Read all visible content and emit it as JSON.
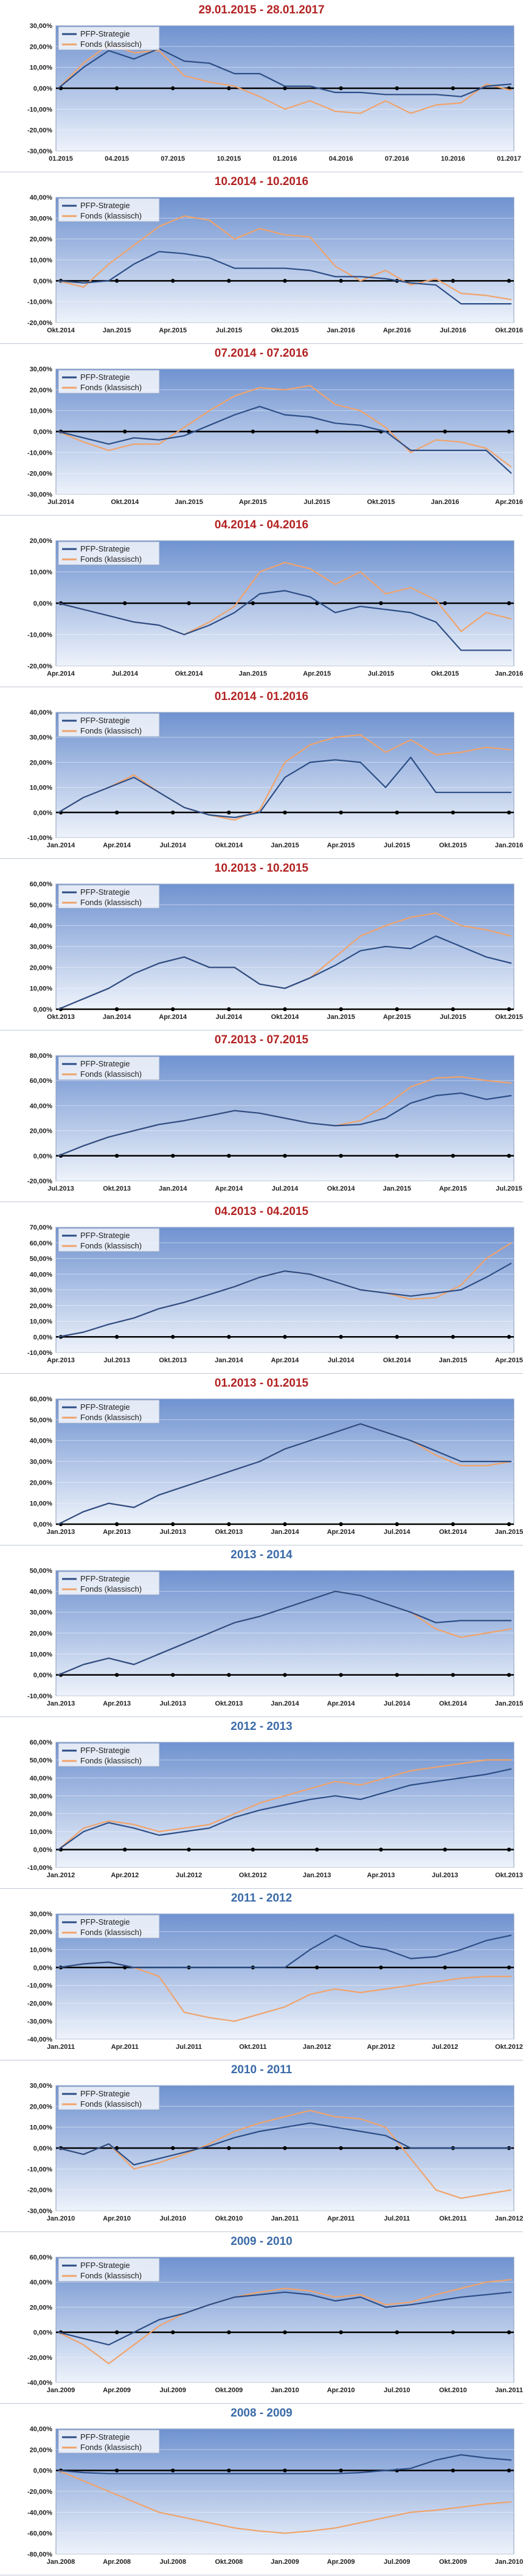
{
  "colors": {
    "strategy": "#2c4d86",
    "fund": "#f0a36b",
    "title_red": "#b22222",
    "title_blue": "#3a6aa8",
    "plot_top": "#6f92d0",
    "plot_bottom": "#eef3fb",
    "zero_line": "#000000"
  },
  "chart_data": [
    {
      "type": "line",
      "title": "29.01.2015 - 28.01.2017",
      "title_color": "red",
      "x_ticks": [
        "01.2015",
        "04.2015",
        "07.2015",
        "10.2015",
        "01.2016",
        "04.2016",
        "07.2016",
        "10.2016",
        "01.2017"
      ],
      "y_ticks": [
        "30,00%",
        "20,00%",
        "10,00%",
        "0,00%",
        "-10,00%",
        "-20,00%",
        "-30,00%"
      ],
      "ylim": [
        -30,
        30
      ],
      "series": [
        {
          "name": "PFP-Strategie",
          "values": [
            0,
            10,
            18,
            14,
            19,
            13,
            12,
            7,
            7,
            1,
            1,
            -2,
            -2,
            -3,
            -3,
            -3,
            -4,
            1,
            2
          ]
        },
        {
          "name": "Fonds (klassisch)",
          "values": [
            0,
            12,
            21,
            17,
            18,
            6,
            3,
            1,
            -4,
            -10,
            -6,
            -11,
            -12,
            -6,
            -12,
            -8,
            -7,
            2,
            -1
          ]
        }
      ]
    },
    {
      "type": "line",
      "title": "10.2014 - 10.2016",
      "title_color": "red",
      "x_ticks": [
        "Okt.2014",
        "Jan.2015",
        "Apr.2015",
        "Jul.2015",
        "Okt.2015",
        "Jan.2016",
        "Apr.2016",
        "Jul.2016",
        "Okt.2016"
      ],
      "y_ticks": [
        "40,00%",
        "30,00%",
        "20,00%",
        "10,00%",
        "0,00%",
        "-10,00%",
        "-20,00%"
      ],
      "ylim": [
        -20,
        40
      ],
      "series": [
        {
          "name": "PFP-Strategie",
          "values": [
            0,
            -1,
            0,
            8,
            14,
            13,
            11,
            6,
            6,
            6,
            5,
            2,
            2,
            1,
            -1,
            -2,
            -11,
            -11,
            -11
          ]
        },
        {
          "name": "Fonds (klassisch)",
          "values": [
            0,
            -3,
            8,
            17,
            26,
            31,
            29,
            20,
            25,
            22,
            21,
            7,
            0,
            5,
            -2,
            1,
            -6,
            -7,
            -9
          ]
        }
      ]
    },
    {
      "type": "line",
      "title": "07.2014 - 07.2016",
      "title_color": "red",
      "x_ticks": [
        "Jul.2014",
        "Okt.2014",
        "Jan.2015",
        "Apr.2015",
        "Jul.2015",
        "Okt.2015",
        "Jan.2016",
        "Apr.2016"
      ],
      "y_ticks": [
        "30,00%",
        "20,00%",
        "10,00%",
        "0,00%",
        "-10,00%",
        "-20,00%",
        "-30,00%"
      ],
      "ylim": [
        -30,
        30
      ],
      "series": [
        {
          "name": "PFP-Strategie",
          "values": [
            0,
            -3,
            -6,
            -3,
            -4,
            -2,
            3,
            8,
            12,
            8,
            7,
            4,
            3,
            0,
            -9,
            -9,
            -9,
            -9,
            -20
          ]
        },
        {
          "name": "Fonds (klassisch)",
          "values": [
            0,
            -5,
            -9,
            -6,
            -6,
            2,
            10,
            17,
            21,
            20,
            22,
            13,
            10,
            2,
            -10,
            -4,
            -5,
            -8,
            -17
          ]
        }
      ]
    },
    {
      "type": "line",
      "title": "04.2014 - 04.2016",
      "title_color": "red",
      "x_ticks": [
        "Apr.2014",
        "Jul.2014",
        "Okt.2014",
        "Jan.2015",
        "Apr.2015",
        "Jul.2015",
        "Okt.2015",
        "Jan.2016"
      ],
      "y_ticks": [
        "20,00%",
        "10,00%",
        "0,00%",
        "-10,00%",
        "-20,00%"
      ],
      "ylim": [
        -20,
        20
      ],
      "series": [
        {
          "name": "PFP-Strategie",
          "values": [
            0,
            -2,
            -4,
            -6,
            -7,
            -10,
            -7,
            -3,
            3,
            4,
            2,
            -3,
            -1,
            -2,
            -3,
            -6,
            -15,
            -15,
            -15
          ]
        },
        {
          "name": "Fonds (klassisch)",
          "values": [
            0,
            -2,
            -4,
            -6,
            -7,
            -10,
            -6,
            -1,
            10,
            13,
            11,
            6,
            10,
            3,
            5,
            1,
            -9,
            -3,
            -5
          ]
        }
      ]
    },
    {
      "type": "line",
      "title": "01.2014 - 01.2016",
      "title_color": "red",
      "x_ticks": [
        "Jan.2014",
        "Apr.2014",
        "Jul.2014",
        "Okt.2014",
        "Jan.2015",
        "Apr.2015",
        "Jul.2015",
        "Okt.2015",
        "Jan.2016"
      ],
      "y_ticks": [
        "40,00%",
        "30,00%",
        "20,00%",
        "10,00%",
        "0,00%",
        "-10,00%"
      ],
      "ylim": [
        -10,
        40
      ],
      "series": [
        {
          "name": "PFP-Strategie",
          "values": [
            0,
            6,
            10,
            14,
            8,
            2,
            -1,
            -2,
            0,
            14,
            20,
            21,
            20,
            10,
            22,
            8,
            8,
            8,
            8
          ]
        },
        {
          "name": "Fonds (klassisch)",
          "values": [
            0,
            6,
            10,
            15,
            8,
            2,
            -1,
            -3,
            1,
            20,
            27,
            30,
            31,
            24,
            29,
            23,
            24,
            26,
            25
          ]
        }
      ]
    },
    {
      "type": "line",
      "title": "10.2013 - 10.2015",
      "title_color": "red",
      "x_ticks": [
        "Okt.2013",
        "Jan.2014",
        "Apr.2014",
        "Jul.2014",
        "Okt.2014",
        "Jan.2015",
        "Apr.2015",
        "Jul.2015",
        "Okt.2015"
      ],
      "y_ticks": [
        "60,00%",
        "50,00%",
        "40,00%",
        "30,00%",
        "20,00%",
        "10,00%",
        "0,00%"
      ],
      "ylim": [
        0,
        60
      ],
      "series": [
        {
          "name": "PFP-Strategie",
          "values": [
            0,
            5,
            10,
            17,
            22,
            25,
            20,
            20,
            12,
            10,
            15,
            21,
            28,
            30,
            29,
            35,
            30,
            25,
            22
          ]
        },
        {
          "name": "Fonds (klassisch)",
          "values": [
            0,
            5,
            10,
            17,
            22,
            25,
            20,
            20,
            12,
            10,
            15,
            25,
            35,
            40,
            44,
            46,
            40,
            38,
            35
          ]
        }
      ]
    },
    {
      "type": "line",
      "title": "07.2013 - 07.2015",
      "title_color": "red",
      "x_ticks": [
        "Jul.2013",
        "Okt.2013",
        "Jan.2014",
        "Apr.2014",
        "Jul.2014",
        "Okt.2014",
        "Jan.2015",
        "Apr.2015",
        "Jul.2015"
      ],
      "y_ticks": [
        "80,00%",
        "60,00%",
        "40,00%",
        "20,00%",
        "0,00%",
        "-20,00%"
      ],
      "ylim": [
        -20,
        80
      ],
      "series": [
        {
          "name": "PFP-Strategie",
          "values": [
            0,
            8,
            15,
            20,
            25,
            28,
            32,
            36,
            34,
            30,
            26,
            24,
            25,
            30,
            42,
            48,
            50,
            45,
            48
          ]
        },
        {
          "name": "Fonds (klassisch)",
          "values": [
            0,
            8,
            15,
            20,
            25,
            28,
            32,
            36,
            34,
            30,
            26,
            24,
            28,
            40,
            55,
            62,
            63,
            60,
            58
          ]
        }
      ]
    },
    {
      "type": "line",
      "title": "04.2013 - 04.2015",
      "title_color": "red",
      "x_ticks": [
        "Apr.2013",
        "Jul.2013",
        "Okt.2013",
        "Jan.2014",
        "Apr.2014",
        "Jul.2014",
        "Okt.2014",
        "Jan.2015",
        "Apr.2015"
      ],
      "y_ticks": [
        "70,00%",
        "60,00%",
        "50,00%",
        "40,00%",
        "30,00%",
        "20,00%",
        "10,00%",
        "0,00%",
        "-10,00%"
      ],
      "ylim": [
        -10,
        70
      ],
      "series": [
        {
          "name": "PFP-Strategie",
          "values": [
            0,
            3,
            8,
            12,
            18,
            22,
            27,
            32,
            38,
            42,
            40,
            35,
            30,
            28,
            26,
            28,
            30,
            38,
            47
          ]
        },
        {
          "name": "Fonds (klassisch)",
          "values": [
            0,
            3,
            8,
            12,
            18,
            22,
            27,
            32,
            38,
            42,
            40,
            35,
            30,
            28,
            24,
            25,
            33,
            50,
            60
          ]
        }
      ]
    },
    {
      "type": "line",
      "title": "01.2013 - 01.2015",
      "title_color": "red",
      "x_ticks": [
        "Jan.2013",
        "Apr.2013",
        "Jul.2013",
        "Okt.2013",
        "Jan.2014",
        "Apr.2014",
        "Jul.2014",
        "Okt.2014",
        "Jan.2015"
      ],
      "y_ticks": [
        "60,00%",
        "50,00%",
        "40,00%",
        "30,00%",
        "20,00%",
        "10,00%",
        "0,00%"
      ],
      "ylim": [
        0,
        60
      ],
      "series": [
        {
          "name": "PFP-Strategie",
          "values": [
            0,
            6,
            10,
            8,
            14,
            18,
            22,
            26,
            30,
            36,
            40,
            44,
            48,
            44,
            40,
            35,
            30,
            30,
            30
          ]
        },
        {
          "name": "Fonds (klassisch)",
          "values": [
            0,
            6,
            10,
            8,
            14,
            18,
            22,
            26,
            30,
            36,
            40,
            44,
            48,
            44,
            40,
            33,
            28,
            28,
            30
          ]
        }
      ]
    },
    {
      "type": "line",
      "title": "2013 - 2014",
      "title_color": "blue",
      "x_ticks": [
        "Jan.2013",
        "Apr.2013",
        "Jul.2013",
        "Okt.2013",
        "Jan.2014",
        "Apr.2014",
        "Jul.2014",
        "Okt.2014",
        "Jan.2015"
      ],
      "y_ticks": [
        "50,00%",
        "40,00%",
        "30,00%",
        "20,00%",
        "10,00%",
        "0,00%",
        "-10,00%"
      ],
      "ylim": [
        -10,
        50
      ],
      "series": [
        {
          "name": "PFP-Strategie",
          "values": [
            0,
            5,
            8,
            5,
            10,
            15,
            20,
            25,
            28,
            32,
            36,
            40,
            38,
            34,
            30,
            25,
            26,
            26,
            26
          ]
        },
        {
          "name": "Fonds (klassisch)",
          "values": [
            0,
            5,
            8,
            5,
            10,
            15,
            20,
            25,
            28,
            32,
            36,
            40,
            38,
            34,
            30,
            22,
            18,
            20,
            22
          ]
        }
      ]
    },
    {
      "type": "line",
      "title": "2012 - 2013",
      "title_color": "blue",
      "x_ticks": [
        "Jan.2012",
        "Apr.2012",
        "Jul.2012",
        "Okt.2012",
        "Jan.2013",
        "Apr.2013",
        "Jul.2013",
        "Okt.2013"
      ],
      "y_ticks": [
        "60,00%",
        "50,00%",
        "40,00%",
        "30,00%",
        "20,00%",
        "10,00%",
        "0,00%",
        "-10,00%"
      ],
      "ylim": [
        -10,
        60
      ],
      "series": [
        {
          "name": "PFP-Strategie",
          "values": [
            0,
            10,
            15,
            12,
            8,
            10,
            12,
            18,
            22,
            25,
            28,
            30,
            28,
            32,
            36,
            38,
            40,
            42,
            45
          ]
        },
        {
          "name": "Fonds (klassisch)",
          "values": [
            0,
            12,
            16,
            14,
            10,
            12,
            14,
            20,
            26,
            30,
            34,
            38,
            36,
            40,
            44,
            46,
            48,
            50,
            50
          ]
        }
      ]
    },
    {
      "type": "line",
      "title": "2011 - 2012",
      "title_color": "blue",
      "x_ticks": [
        "Jan.2011",
        "Apr.2011",
        "Jul.2011",
        "Okt.2011",
        "Jan.2012",
        "Apr.2012",
        "Jul.2012",
        "Okt.2012"
      ],
      "y_ticks": [
        "30,00%",
        "20,00%",
        "10,00%",
        "0,00%",
        "-10,00%",
        "-20,00%",
        "-30,00%",
        "-40,00%"
      ],
      "ylim": [
        -40,
        30
      ],
      "series": [
        {
          "name": "PFP-Strategie",
          "values": [
            0,
            2,
            3,
            0,
            0,
            0,
            0,
            0,
            0,
            0,
            10,
            18,
            12,
            10,
            5,
            6,
            10,
            15,
            18
          ]
        },
        {
          "name": "Fonds (klassisch)",
          "values": [
            0,
            2,
            3,
            0,
            -5,
            -25,
            -28,
            -30,
            -26,
            -22,
            -15,
            -12,
            -14,
            -12,
            -10,
            -8,
            -6,
            -5,
            -5
          ]
        }
      ]
    },
    {
      "type": "line",
      "title": "2010 - 2011",
      "title_color": "blue",
      "x_ticks": [
        "Jan.2010",
        "Apr.2010",
        "Jul.2010",
        "Okt.2010",
        "Jan.2011",
        "Apr.2011",
        "Jul.2011",
        "Okt.2011",
        "Jan.2012"
      ],
      "y_ticks": [
        "30,00%",
        "20,00%",
        "10,00%",
        "0,00%",
        "-10,00%",
        "-20,00%",
        "-30,00%"
      ],
      "ylim": [
        -30,
        30
      ],
      "series": [
        {
          "name": "PFP-Strategie",
          "values": [
            0,
            -3,
            2,
            -8,
            -5,
            -2,
            1,
            5,
            8,
            10,
            12,
            10,
            8,
            6,
            0,
            0,
            0,
            0,
            0
          ]
        },
        {
          "name": "Fonds (klassisch)",
          "values": [
            0,
            -3,
            2,
            -10,
            -7,
            -3,
            2,
            8,
            12,
            15,
            18,
            15,
            14,
            10,
            -5,
            -20,
            -24,
            -22,
            -20
          ]
        }
      ]
    },
    {
      "type": "line",
      "title": "2009 - 2010",
      "title_color": "blue",
      "x_ticks": [
        "Jan.2009",
        "Apr.2009",
        "Jul.2009",
        "Okt.2009",
        "Jan.2010",
        "Apr.2010",
        "Jul.2010",
        "Okt.2010",
        "Jan.2011"
      ],
      "y_ticks": [
        "60,00%",
        "40,00%",
        "20,00%",
        "0,00%",
        "-20,00%",
        "-40,00%"
      ],
      "ylim": [
        -40,
        60
      ],
      "series": [
        {
          "name": "PFP-Strategie",
          "values": [
            0,
            -5,
            -10,
            0,
            10,
            15,
            22,
            28,
            30,
            32,
            30,
            25,
            28,
            20,
            22,
            25,
            28,
            30,
            32
          ]
        },
        {
          "name": "Fonds (klassisch)",
          "values": [
            0,
            -10,
            -25,
            -10,
            5,
            15,
            22,
            28,
            32,
            35,
            33,
            28,
            30,
            22,
            24,
            30,
            35,
            40,
            42
          ]
        }
      ]
    },
    {
      "type": "line",
      "title": "2008 - 2009",
      "title_color": "blue",
      "x_ticks": [
        "Jan.2008",
        "Apr.2008",
        "Jul.2008",
        "Okt.2008",
        "Jan.2009",
        "Apr.2009",
        "Jul.2009",
        "Okt.2009",
        "Jan.2010"
      ],
      "y_ticks": [
        "40,00%",
        "20,00%",
        "0,00%",
        "-20,00%",
        "-40,00%",
        "-60,00%",
        "-80,00%"
      ],
      "ylim": [
        -80,
        40
      ],
      "series": [
        {
          "name": "PFP-Strategie",
          "values": [
            0,
            -2,
            -3,
            -3,
            -3,
            -3,
            -3,
            -3,
            -3,
            -3,
            -3,
            -3,
            -2,
            0,
            2,
            10,
            15,
            12,
            10
          ]
        },
        {
          "name": "Fonds (klassisch)",
          "values": [
            0,
            -10,
            -20,
            -30,
            -40,
            -45,
            -50,
            -55,
            -58,
            -60,
            -58,
            -55,
            -50,
            -45,
            -40,
            -38,
            -35,
            -32,
            -30
          ]
        }
      ]
    }
  ]
}
